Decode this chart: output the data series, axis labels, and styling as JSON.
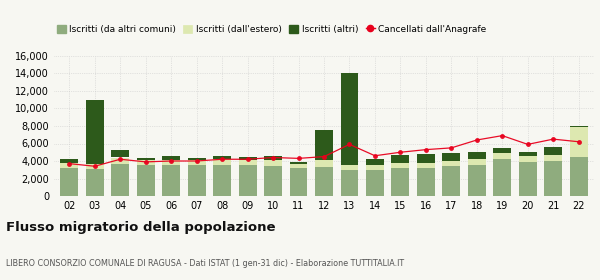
{
  "years": [
    "02",
    "03",
    "04",
    "05",
    "06",
    "07",
    "08",
    "09",
    "10",
    "11",
    "12",
    "13",
    "14",
    "15",
    "16",
    "17",
    "18",
    "19",
    "20",
    "21",
    "22"
  ],
  "iscritti_altri_comuni": [
    3200,
    3100,
    3700,
    3600,
    3500,
    3500,
    3600,
    3500,
    3400,
    3200,
    3300,
    3000,
    3000,
    3200,
    3200,
    3400,
    3500,
    4200,
    3900,
    4000,
    4500
  ],
  "iscritti_estero": [
    600,
    600,
    700,
    500,
    600,
    600,
    600,
    600,
    700,
    500,
    800,
    500,
    500,
    600,
    600,
    600,
    700,
    700,
    700,
    700,
    3400
  ],
  "iscritti_altri": [
    400,
    7300,
    900,
    200,
    500,
    300,
    400,
    400,
    500,
    200,
    3500,
    10600,
    700,
    900,
    1000,
    900,
    800,
    600,
    400,
    900,
    100
  ],
  "cancellati": [
    3700,
    3400,
    4200,
    3900,
    4000,
    4000,
    4200,
    4200,
    4400,
    4300,
    4500,
    5900,
    4600,
    5000,
    5300,
    5500,
    6400,
    6900,
    5900,
    6500,
    6200
  ],
  "color_altri_comuni": "#8fac7e",
  "color_estero": "#dde8b0",
  "color_altri": "#2d5a1b",
  "color_cancellati": "#e8001c",
  "ylim": [
    0,
    16000
  ],
  "yticks": [
    0,
    2000,
    4000,
    6000,
    8000,
    10000,
    12000,
    14000,
    16000
  ],
  "title": "Flusso migratorio della popolazione",
  "subtitle": "LIBERO CONSORZIO COMUNALE DI RAGUSA - Dati ISTAT (1 gen-31 dic) - Elaborazione TUTTITALIA.IT",
  "legend_labels": [
    "Iscritti (da altri comuni)",
    "Iscritti (dall'estero)",
    "Iscritti (altri)",
    "Cancellati dall'Anagrafe"
  ],
  "bg_color": "#f7f7f2"
}
